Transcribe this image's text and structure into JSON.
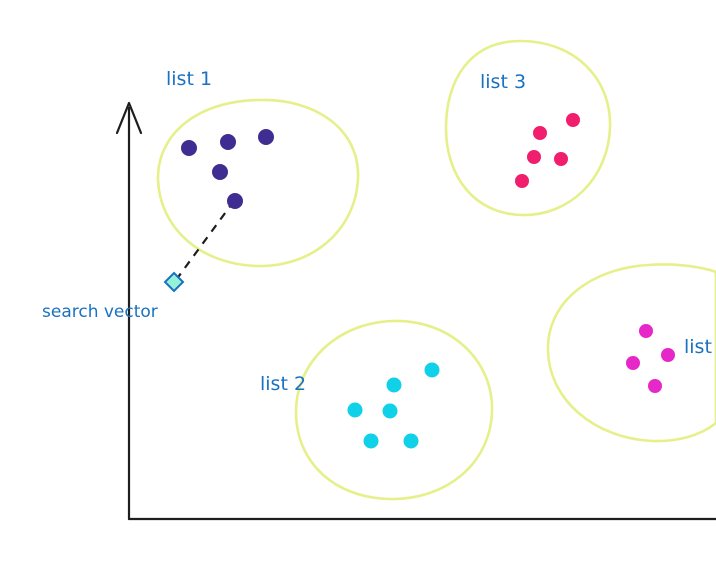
{
  "clusters": [
    {
      "label": "list 1",
      "color": "#3f2d91"
    },
    {
      "label": "list 2",
      "color": "#10d1e8"
    },
    {
      "label": "list 3",
      "color": "#f01e6c"
    },
    {
      "label": "list",
      "color": "#e628c8"
    }
  ],
  "search_vector": {
    "label": "search vector",
    "color": "#96f2d7"
  },
  "colors": {
    "cluster_outline": "#e6f08a",
    "label_text": "#1971c2",
    "axis": "#1e1e1e"
  }
}
